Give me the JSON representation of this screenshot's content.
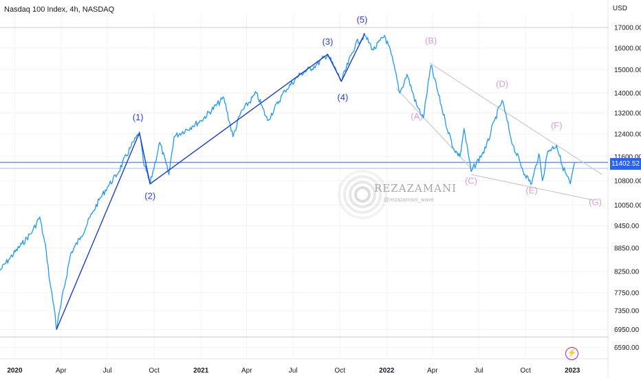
{
  "header": {
    "title": "Nasdaq 100 Index, 4h, NASDAQ",
    "currency": "USD"
  },
  "current_price_label": "11402.52",
  "watermark": {
    "text": "REZAZAMANI",
    "sub": "@rezazamani_wave"
  },
  "icons": {
    "alert": "lightning-icon"
  },
  "colors": {
    "price_line": "#2196f3",
    "impulse_wave": "#1a3cc8",
    "impulse_label": "#2a3fd8",
    "corrective_label": "#d49fd8",
    "channel_line": "#c9c9c9",
    "price_tag": "#2962ff"
  },
  "chart_data": {
    "type": "line",
    "title": "Nasdaq 100 Index, 4h, NASDAQ",
    "xlabel": "",
    "ylabel": "USD",
    "ylim": [
      6400,
      17350
    ],
    "xlim": [
      "2019-12-03",
      "2023-03-12"
    ],
    "x_ticks": [
      {
        "label": "2020",
        "date": "2020-01-01"
      },
      {
        "label": "Apr",
        "date": "2020-04-01"
      },
      {
        "label": "Jul",
        "date": "2020-07-01"
      },
      {
        "label": "Oct",
        "date": "2020-10-01"
      },
      {
        "label": "2021",
        "date": "2021-01-01"
      },
      {
        "label": "Apr",
        "date": "2021-04-01"
      },
      {
        "label": "Jul",
        "date": "2021-07-01"
      },
      {
        "label": "Oct",
        "date": "2021-10-01"
      },
      {
        "label": "2022",
        "date": "2022-01-01"
      },
      {
        "label": "Apr",
        "date": "2022-04-01"
      },
      {
        "label": "Jul",
        "date": "2022-07-01"
      },
      {
        "label": "Oct",
        "date": "2022-10-01"
      },
      {
        "label": "2023",
        "date": "2023-01-01"
      }
    ],
    "y_ticks": [
      17000,
      16000,
      15000,
      14000,
      13200,
      12400,
      11600,
      10800,
      10050,
      9450,
      8850,
      8250,
      7750,
      7350,
      6950,
      6590
    ],
    "series": [
      {
        "values": [
          [
            "2019-12-03",
            8280
          ],
          [
            "2019-12-20",
            8550
          ],
          [
            "2020-01-15",
            8950
          ],
          [
            "2020-02-05",
            9300
          ],
          [
            "2020-02-19",
            9700
          ],
          [
            "2020-03-03",
            8750
          ],
          [
            "2020-03-10",
            8000
          ],
          [
            "2020-03-20",
            7300
          ],
          [
            "2020-03-23",
            6950
          ],
          [
            "2020-04-01",
            7500
          ],
          [
            "2020-04-20",
            8700
          ],
          [
            "2020-05-10",
            9150
          ],
          [
            "2020-06-01",
            9800
          ],
          [
            "2020-06-15",
            10200
          ],
          [
            "2020-07-01",
            10600
          ],
          [
            "2020-07-20",
            11000
          ],
          [
            "2020-08-15",
            11900
          ],
          [
            "2020-09-02",
            12450
          ],
          [
            "2020-09-10",
            11400
          ],
          [
            "2020-09-23",
            10700
          ],
          [
            "2020-10-12",
            12100
          ],
          [
            "2020-10-30",
            11000
          ],
          [
            "2020-11-09",
            12300
          ],
          [
            "2020-12-15",
            12700
          ],
          [
            "2021-01-01",
            12900
          ],
          [
            "2021-02-15",
            13800
          ],
          [
            "2021-03-05",
            12300
          ],
          [
            "2021-03-20",
            13200
          ],
          [
            "2021-04-20",
            14000
          ],
          [
            "2021-05-12",
            12900
          ],
          [
            "2021-06-15",
            14100
          ],
          [
            "2021-07-15",
            14800
          ],
          [
            "2021-08-15",
            15200
          ],
          [
            "2021-09-07",
            15700
          ],
          [
            "2021-10-04",
            14500
          ],
          [
            "2021-11-01",
            16200
          ],
          [
            "2021-11-19",
            16600
          ],
          [
            "2021-12-06",
            15900
          ],
          [
            "2021-12-28",
            16600
          ],
          [
            "2022-01-10",
            15700
          ],
          [
            "2022-01-27",
            14000
          ],
          [
            "2022-02-10",
            14800
          ],
          [
            "2022-03-01",
            13500
          ],
          [
            "2022-03-14",
            13000
          ],
          [
            "2022-03-29",
            15200
          ],
          [
            "2022-04-26",
            12900
          ],
          [
            "2022-05-12",
            11900
          ],
          [
            "2022-05-25",
            11600
          ],
          [
            "2022-06-02",
            12600
          ],
          [
            "2022-06-16",
            11100
          ],
          [
            "2022-07-15",
            11900
          ],
          [
            "2022-08-01",
            12900
          ],
          [
            "2022-08-16",
            13700
          ],
          [
            "2022-09-06",
            12000
          ],
          [
            "2022-09-30",
            11000
          ],
          [
            "2022-10-13",
            10700
          ],
          [
            "2022-10-27",
            11700
          ],
          [
            "2022-11-03",
            10800
          ],
          [
            "2022-11-14",
            11800
          ],
          [
            "2022-12-01",
            12000
          ],
          [
            "2022-12-12",
            11300
          ],
          [
            "2022-12-28",
            10700
          ],
          [
            "2023-01-06",
            11400
          ]
        ]
      }
    ],
    "impulse_wave": [
      {
        "label": "",
        "date": "2020-03-23",
        "value": 6950
      },
      {
        "label": "(1)",
        "date": "2020-09-02",
        "value": 12450
      },
      {
        "label": "(2)",
        "date": "2020-09-23",
        "value": 10700
      },
      {
        "label": "(3)",
        "date": "2021-09-07",
        "value": 15700
      },
      {
        "label": "(4)",
        "date": "2021-10-04",
        "value": 14500
      },
      {
        "label": "(5)",
        "date": "2021-11-19",
        "value": 16700
      }
    ],
    "corrective_labels": [
      {
        "label": "(A)",
        "date": "2022-03-01",
        "value": 12950
      },
      {
        "label": "(B)",
        "date": "2022-03-29",
        "value": 16200
      },
      {
        "label": "(C)",
        "date": "2022-06-16",
        "value": 10700
      },
      {
        "label": "(D)",
        "date": "2022-08-16",
        "value": 14250
      },
      {
        "label": "(E)",
        "date": "2022-10-13",
        "value": 10400
      },
      {
        "label": "(F)",
        "date": "2022-12-01",
        "value": 12600
      },
      {
        "label": "(G)",
        "date": "2023-02-15",
        "value": 10050
      }
    ],
    "channel_lines": [
      {
        "from": {
          "date": "2022-03-27",
          "value": 15300
        },
        "to": {
          "date": "2023-02-28",
          "value": 11000
        }
      },
      {
        "from": {
          "date": "2022-01-20",
          "value": 14200
        },
        "to": {
          "date": "2022-06-16",
          "value": 11200
        }
      },
      {
        "from": {
          "date": "2022-06-16",
          "value": 11000
        },
        "to": {
          "date": "2023-02-10",
          "value": 10200
        }
      }
    ],
    "horizontal_lines": [
      {
        "value": 17000,
        "color": "#c8c8c8"
      },
      {
        "value": 11402.52,
        "color": "#2962ff"
      },
      {
        "value": 11200,
        "color": "#9fbff0"
      },
      {
        "value": 6800,
        "color": "#c8c8c8"
      }
    ],
    "last_value": 11402.52,
    "grid": true
  }
}
